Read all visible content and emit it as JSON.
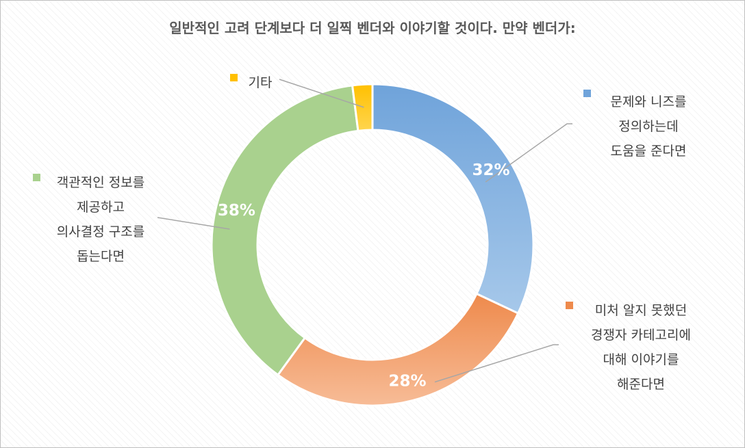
{
  "chart_data": {
    "type": "pie",
    "style": "donut",
    "title": "일반적인 고려 단계보다 더 일찍 벤더와 이야기할 것이다. 만약 벤더가:",
    "slices": [
      {
        "label_lines": [
          "문제와 니즈를",
          "정의하는데",
          "도움을 준다면"
        ],
        "value": 32,
        "value_label": "32%",
        "color": "#6fa3da",
        "color_light": "#a6c8ea"
      },
      {
        "label_lines": [
          "미처 알지 못했던",
          "경쟁자 카테고리에",
          "대해 이야기를",
          "해준다면"
        ],
        "value": 28,
        "value_label": "28%",
        "color": "#ee8a4c",
        "color_light": "#f7bc97"
      },
      {
        "label_lines": [
          "객관적인 정보를",
          "제공하고",
          "의사결정 구조를",
          "돕는다면"
        ],
        "value": 38,
        "value_label": "38%",
        "color": "#a9d18e",
        "color_light": "#a9d18e"
      },
      {
        "label_lines": [
          "기타"
        ],
        "value": 2,
        "value_label": "",
        "color": "#ffc000",
        "color_light": "#ffd54f"
      }
    ],
    "legend_placement": "around"
  }
}
